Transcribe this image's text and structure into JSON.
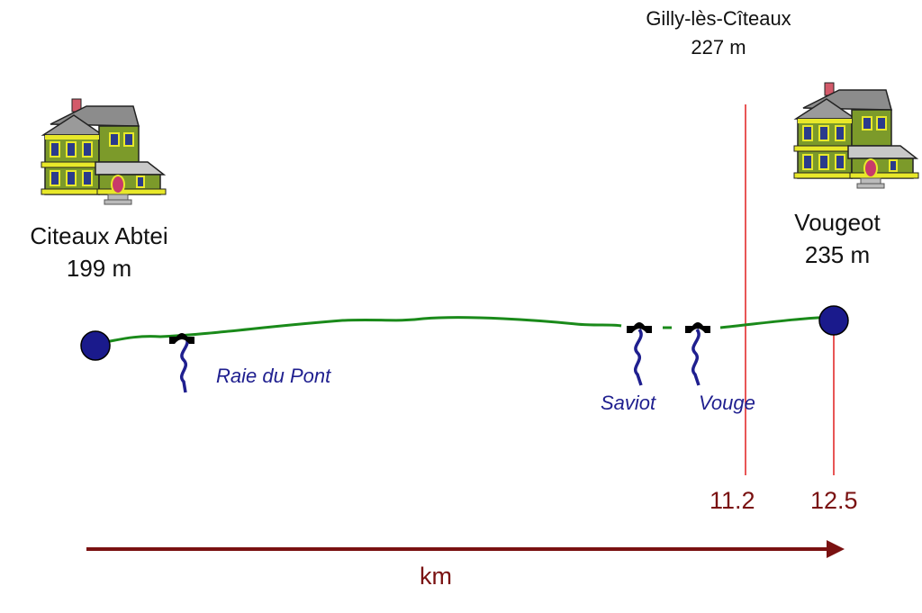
{
  "start": {
    "name": "Citeaux Abtei",
    "elevation": "199 m",
    "house_icon": "house-icon"
  },
  "end": {
    "name": "Vougeot",
    "elevation": "235 m",
    "house_icon": "house-icon"
  },
  "waypoint": {
    "name": "Gilly-lès-Cîteaux",
    "elevation": "227 m"
  },
  "rivers": [
    {
      "name": "Raie du Pont",
      "icon": "bridge-icon"
    },
    {
      "name": "Saviot",
      "icon": "bridge-icon"
    },
    {
      "name": "Vouge",
      "icon": "bridge-icon"
    }
  ],
  "distance_markers": [
    "11.2",
    "12.5"
  ],
  "axis": {
    "label": "km"
  },
  "colors": {
    "route": "#1a8a1a",
    "endpoint": "#1a1a8c",
    "river": "#1f1f8f",
    "marker": "#e01f1f",
    "axis": "#7a1111",
    "house_wall": "#e8e82a",
    "house_roof": "#8a8a8a"
  }
}
